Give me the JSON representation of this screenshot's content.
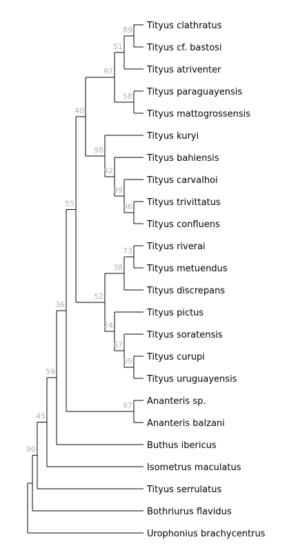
{
  "tree": {
    "taxa": [
      "Tityus clathratus",
      "Tityus cf. bastosi",
      "Tityus atriventer",
      "Tityus paraguayensis",
      "Tityus mattogrossensis",
      "Tityus kuryi",
      "Tityus bahiensis",
      "Tityus carvalhoi",
      "Tityus trivittatus",
      "Tityus confluens",
      "Tityus riverai",
      "Tityus metuendus",
      "Tityus discrepans",
      "Tityus pictus",
      "Tityus soratensis",
      "Tityus curupi",
      "Tityus uruguayensis",
      "Ananteris sp.",
      "Ananteris balzani",
      "Buthus ibericus",
      "Isometrus maculatus",
      "Tityus serrulatus",
      "Bothriurus flavidus",
      "Urophonius brachycentrus"
    ],
    "support_values": [
      "89",
      "51",
      "97",
      "58",
      "40",
      "98",
      "92",
      "99",
      "96",
      "55",
      "73",
      "38",
      "52",
      "24",
      "67",
      "99",
      "36",
      "97",
      "59",
      "45",
      "90"
    ]
  }
}
